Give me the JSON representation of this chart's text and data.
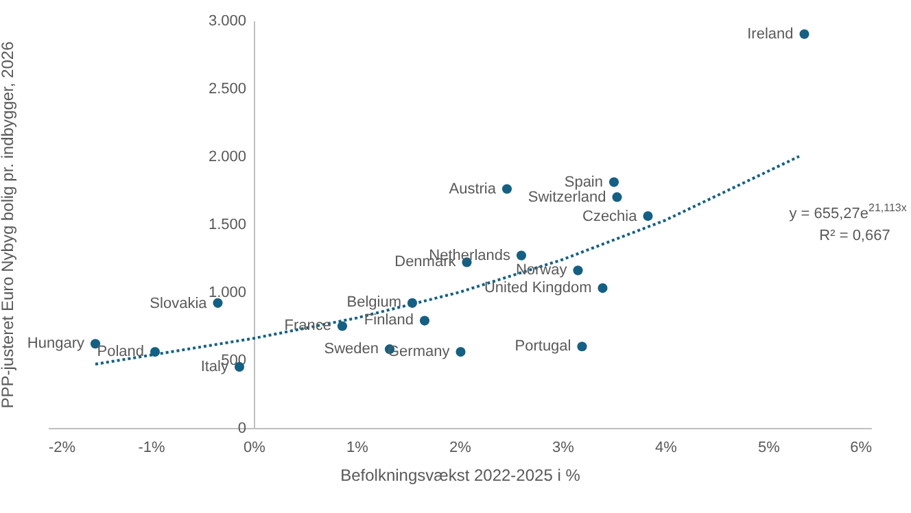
{
  "chart_data": {
    "type": "scatter",
    "xlabel": "Befolkningsvækst 2022-2025 i %",
    "ylabel": "PPP-justeret Euro Nybyg bolig pr. indbygger, 2026",
    "xlim": [
      -2,
      6
    ],
    "xticks": [
      {
        "value": -2,
        "label": "-2%"
      },
      {
        "value": -1,
        "label": "-1%"
      },
      {
        "value": 0,
        "label": "0%"
      },
      {
        "value": 1,
        "label": "1%"
      },
      {
        "value": 2,
        "label": "2%"
      },
      {
        "value": 3,
        "label": "3%"
      },
      {
        "value": 4,
        "label": "4%"
      },
      {
        "value": 5,
        "label": "5%"
      },
      {
        "value": 6,
        "label": "6%"
      }
    ],
    "ylim": [
      0,
      3000
    ],
    "yticks": [
      {
        "value": 0,
        "label": "0"
      },
      {
        "value": 500,
        "label": "500"
      },
      {
        "value": 1000,
        "label": "1.000"
      },
      {
        "value": 1500,
        "label": "1.500"
      },
      {
        "value": 2000,
        "label": "2.000"
      },
      {
        "value": 2500,
        "label": "2.500"
      },
      {
        "value": 3000,
        "label": "3.000"
      }
    ],
    "grid": false,
    "series": [
      {
        "color": "#156082",
        "marker": "circle",
        "x": [
          -1.54,
          -0.96,
          -0.35,
          -0.14,
          0.86,
          1.54,
          1.66,
          1.32,
          2.01,
          2.07,
          2.6,
          2.46,
          3.5,
          3.53,
          3.83,
          3.15,
          3.39,
          3.19,
          5.35
        ],
        "values": [
          620,
          560,
          920,
          450,
          750,
          920,
          790,
          580,
          560,
          1220,
          1270,
          1760,
          1810,
          1700,
          1560,
          1160,
          1030,
          600,
          2900
        ]
      },
      {
        "type": "line",
        "color": "#156082",
        "line_style": "dotted",
        "x": [
          -1.54,
          0,
          1,
          2,
          3,
          4,
          5.3
        ],
        "values": [
          470,
          660,
          810,
          1000,
          1240,
          1530,
          2000
        ]
      }
    ],
    "annotations": [
      {
        "text": "Hungary",
        "x": -1.54,
        "y": 623
      },
      {
        "text": "Poland",
        "x": -0.96,
        "y": 563
      },
      {
        "text": "Slovakia",
        "x": -0.35,
        "y": 915
      },
      {
        "text": "Italy",
        "x": -0.14,
        "y": 452
      },
      {
        "text": "France",
        "x": 0.86,
        "y": 754
      },
      {
        "text": "Belgium",
        "x": 1.54,
        "y": 922
      },
      {
        "text": "Finland",
        "x": 1.66,
        "y": 791
      },
      {
        "text": "Sweden",
        "x": 1.32,
        "y": 583
      },
      {
        "text": "Germany",
        "x": 2.01,
        "y": 563
      },
      {
        "text": "Denmark",
        "x": 2.07,
        "y": 1223
      },
      {
        "text": "Netherlands",
        "x": 2.6,
        "y": 1266
      },
      {
        "text": "Austria",
        "x": 2.46,
        "y": 1759
      },
      {
        "text": "Spain",
        "x": 3.5,
        "y": 1806
      },
      {
        "text": "Switzerland",
        "x": 3.53,
        "y": 1695
      },
      {
        "text": "Czechia",
        "x": 3.83,
        "y": 1558
      },
      {
        "text": "Norway",
        "x": 3.15,
        "y": 1163
      },
      {
        "text": "United Kingdom",
        "x": 3.39,
        "y": 1032
      },
      {
        "text": "Portugal",
        "x": 3.19,
        "y": 600
      },
      {
        "text": "Ireland",
        "x": 5.35,
        "y": 2901
      },
      "y = 655,27e$^{21,113x}$",
      "R² = 0,667"
    ]
  }
}
